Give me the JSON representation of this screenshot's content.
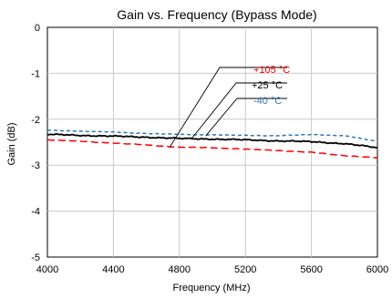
{
  "chart_data": {
    "type": "line",
    "title": "Gain vs. Frequency (Bypass Mode)",
    "xlabel": "Frequency (MHz)",
    "ylabel": "Gain (dB)",
    "xlim": [
      4000,
      6000
    ],
    "ylim": [
      -5,
      0
    ],
    "xticks": [
      "4000",
      "4400",
      "4800",
      "5200",
      "5600",
      "6000"
    ],
    "yticks": [
      "0",
      "-1",
      "-2",
      "-3",
      "-4",
      "-5"
    ],
    "grid": true,
    "legend_placement": "callout labels top-right with leader lines",
    "series": [
      {
        "name": "+105 °C",
        "color": "#ff0000",
        "style": "dashed",
        "points": [
          [
            4000,
            -2.45
          ],
          [
            4200,
            -2.48
          ],
          [
            4400,
            -2.52
          ],
          [
            4600,
            -2.56
          ],
          [
            4800,
            -2.61
          ],
          [
            5000,
            -2.62
          ],
          [
            5200,
            -2.65
          ],
          [
            5400,
            -2.68
          ],
          [
            5600,
            -2.72
          ],
          [
            5800,
            -2.79
          ],
          [
            6000,
            -2.84
          ]
        ]
      },
      {
        "name": "+25 °C",
        "color": "#000000",
        "style": "solid",
        "points": [
          [
            4000,
            -2.33
          ],
          [
            4200,
            -2.35
          ],
          [
            4400,
            -2.37
          ],
          [
            4600,
            -2.39
          ],
          [
            4800,
            -2.42
          ],
          [
            5000,
            -2.43
          ],
          [
            5200,
            -2.45
          ],
          [
            5400,
            -2.47
          ],
          [
            5600,
            -2.49
          ],
          [
            5800,
            -2.53
          ],
          [
            6000,
            -2.62
          ]
        ]
      },
      {
        "name": "-40 °C",
        "color": "#2e75b6",
        "style": "dashed",
        "points": [
          [
            4000,
            -2.24
          ],
          [
            4200,
            -2.26
          ],
          [
            4400,
            -2.28
          ],
          [
            4600,
            -2.31
          ],
          [
            4800,
            -2.33
          ],
          [
            5000,
            -2.34
          ],
          [
            5200,
            -2.35
          ],
          [
            5400,
            -2.36
          ],
          [
            5600,
            -2.33
          ],
          [
            5800,
            -2.36
          ],
          [
            6000,
            -2.48
          ]
        ]
      }
    ]
  }
}
